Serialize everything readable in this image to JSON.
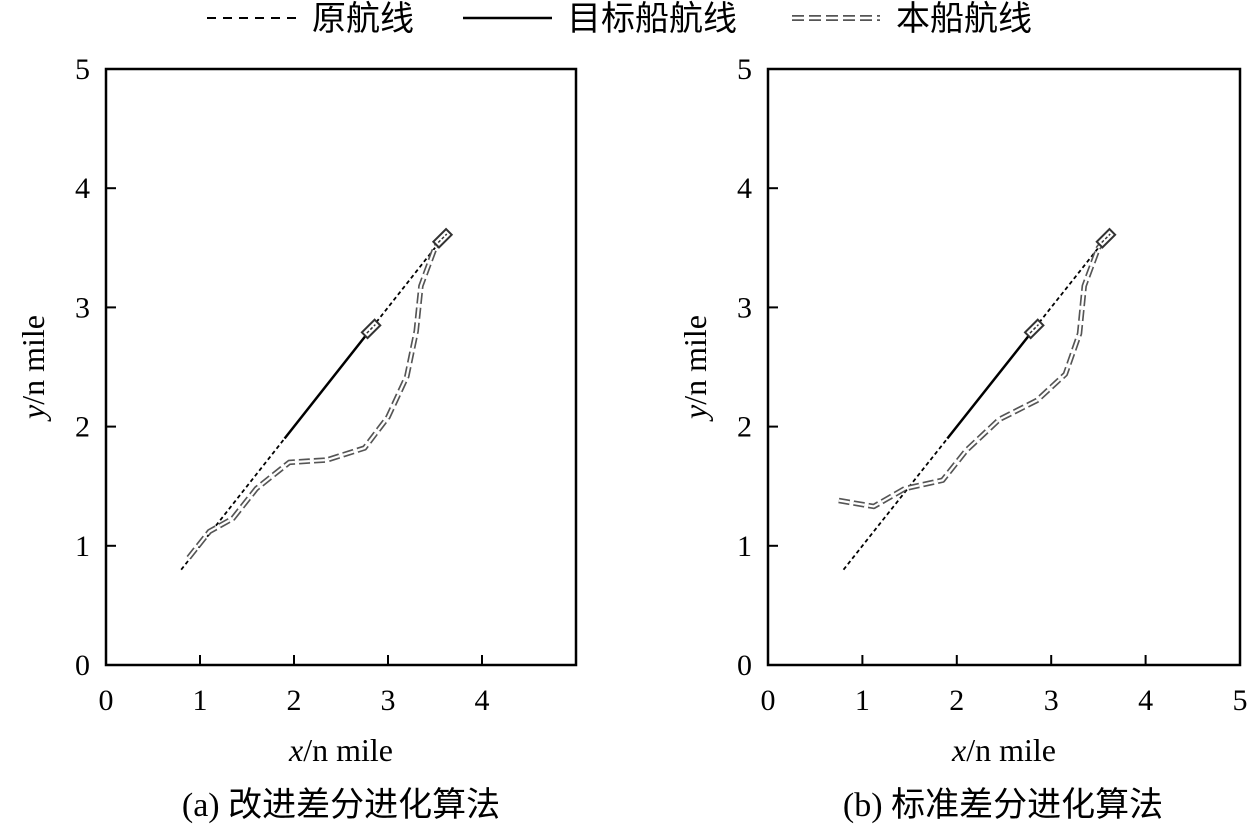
{
  "legend": [
    {
      "label": "原航线",
      "style": "dashed"
    },
    {
      "label": "目标船航线",
      "style": "solid"
    },
    {
      "label": "本船航线",
      "style": "double-dashed"
    }
  ],
  "chart_data": [
    {
      "type": "line",
      "caption": "(a) 改进差分进化算法",
      "xlabel_var": "x",
      "xlabel_unit": "/n mile",
      "ylabel_var": "y",
      "ylabel_unit": "/n mile",
      "xlim": [
        0,
        5
      ],
      "ylim": [
        0,
        5
      ],
      "xticks": [
        "0",
        "1",
        "2",
        "3",
        "4"
      ],
      "yticks": [
        "0",
        "1",
        "2",
        "3",
        "4",
        "5"
      ],
      "series": [
        {
          "name": "原航线",
          "style": "dashed",
          "points": [
            [
              0.8,
              0.8
            ],
            [
              3.6,
              3.6
            ]
          ]
        },
        {
          "name": "目标船航线",
          "style": "solid",
          "points": [
            [
              1.9,
              1.9
            ],
            [
              2.8,
              2.8
            ]
          ]
        },
        {
          "name": "本船航线",
          "style": "double-dashed",
          "points": [
            [
              0.88,
              0.9
            ],
            [
              1.1,
              1.12
            ],
            [
              1.35,
              1.23
            ],
            [
              1.6,
              1.48
            ],
            [
              1.95,
              1.7
            ],
            [
              2.35,
              1.72
            ],
            [
              2.75,
              1.82
            ],
            [
              3.0,
              2.08
            ],
            [
              3.2,
              2.42
            ],
            [
              3.3,
              2.8
            ],
            [
              3.35,
              3.18
            ],
            [
              3.5,
              3.5
            ],
            [
              3.6,
              3.6
            ]
          ]
        },
        {
          "name": "目标船标记",
          "style": "marker",
          "points": [
            [
              2.82,
              2.82
            ]
          ]
        },
        {
          "name": "本船标记",
          "style": "marker",
          "points": [
            [
              3.58,
              3.58
            ]
          ]
        }
      ]
    },
    {
      "type": "line",
      "caption": "(b) 标准差分进化算法",
      "xlabel_var": "x",
      "xlabel_unit": "/n mile",
      "ylabel_var": "y",
      "ylabel_unit": "/n mile",
      "xlim": [
        0,
        5
      ],
      "ylim": [
        0,
        5
      ],
      "xticks": [
        "0",
        "1",
        "2",
        "3",
        "4",
        "5"
      ],
      "yticks": [
        "0",
        "1",
        "2",
        "3",
        "4",
        "5"
      ],
      "series": [
        {
          "name": "原航线",
          "style": "dashed",
          "points": [
            [
              0.8,
              0.8
            ],
            [
              3.6,
              3.6
            ]
          ]
        },
        {
          "name": "目标船航线",
          "style": "solid",
          "points": [
            [
              1.9,
              1.9
            ],
            [
              2.8,
              2.8
            ]
          ]
        },
        {
          "name": "本船航线",
          "style": "double-dashed",
          "points": [
            [
              0.75,
              1.38
            ],
            [
              1.12,
              1.33
            ],
            [
              1.45,
              1.48
            ],
            [
              1.85,
              1.55
            ],
            [
              2.1,
              1.8
            ],
            [
              2.45,
              2.06
            ],
            [
              2.85,
              2.22
            ],
            [
              3.15,
              2.44
            ],
            [
              3.3,
              2.78
            ],
            [
              3.35,
              3.18
            ],
            [
              3.5,
              3.5
            ],
            [
              3.6,
              3.6
            ]
          ]
        },
        {
          "name": "目标船标记",
          "style": "marker",
          "points": [
            [
              2.82,
              2.82
            ]
          ]
        },
        {
          "name": "本船标记",
          "style": "marker",
          "points": [
            [
              3.58,
              3.58
            ]
          ]
        }
      ]
    }
  ]
}
